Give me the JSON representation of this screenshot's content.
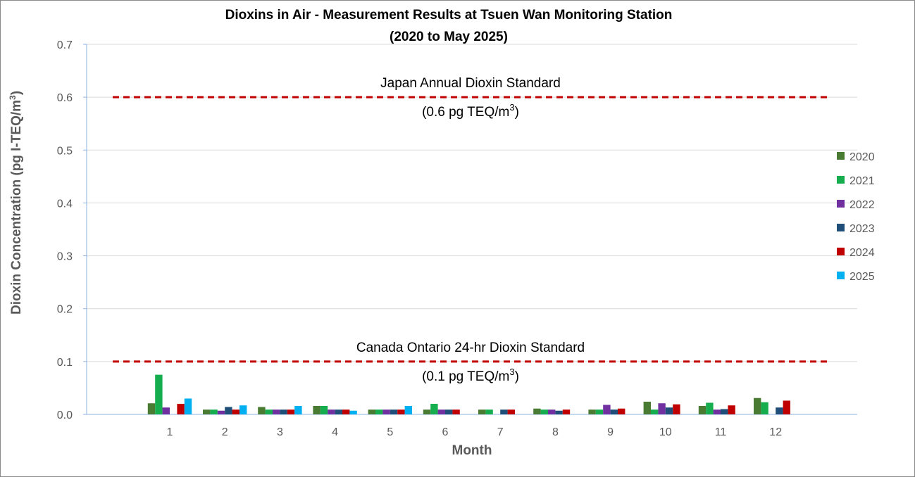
{
  "chart_data": {
    "type": "bar",
    "title_line1": "Dioxins in Air - Measurement Results at Tsuen Wan Monitoring Station",
    "title_line2": "(2020 to May 2025)",
    "xlabel": "Month",
    "ylabel_prefix": "Dioxin Concentration (pg I-TEQ/m",
    "ylabel_sup": "3",
    "ylabel_suffix": ")",
    "ylim": [
      0,
      0.7
    ],
    "yticks": [
      "0.0",
      "0.1",
      "0.2",
      "0.3",
      "0.4",
      "0.5",
      "0.6",
      "0.7"
    ],
    "grid": true,
    "legend_position": "right",
    "categories": [
      "1",
      "2",
      "3",
      "4",
      "5",
      "6",
      "7",
      "8",
      "9",
      "10",
      "11",
      "12"
    ],
    "series": [
      {
        "name": "2020",
        "color": "#4a7b32",
        "values": [
          0.021,
          0.009,
          0.014,
          0.016,
          0.009,
          0.009,
          0.009,
          0.011,
          0.009,
          0.024,
          0.016,
          0.031
        ]
      },
      {
        "name": "2021",
        "color": "#15ad4d",
        "values": [
          0.075,
          0.009,
          0.009,
          0.016,
          0.009,
          0.02,
          0.009,
          0.009,
          0.009,
          0.009,
          0.022,
          0.023
        ]
      },
      {
        "name": "2022",
        "color": "#7030a0",
        "values": [
          0.013,
          0.007,
          0.009,
          0.009,
          0.009,
          0.009,
          null,
          0.009,
          0.018,
          0.021,
          0.009,
          null
        ]
      },
      {
        "name": "2023",
        "color": "#1f4e79",
        "values": [
          null,
          0.014,
          0.009,
          0.009,
          0.009,
          0.009,
          0.009,
          0.007,
          0.009,
          0.013,
          0.01,
          0.013
        ]
      },
      {
        "name": "2024",
        "color": "#c00000",
        "values": [
          0.02,
          0.009,
          0.009,
          0.009,
          0.009,
          0.009,
          0.009,
          0.009,
          0.011,
          0.019,
          0.017,
          0.026
        ]
      },
      {
        "name": "2025",
        "color": "#00b0f0",
        "values": [
          0.03,
          0.017,
          0.016,
          0.007,
          0.016,
          null,
          null,
          null,
          null,
          null,
          null,
          null
        ]
      }
    ],
    "reference_lines": [
      {
        "value": 0.6,
        "label": "Japan Annual Dioxin Standard",
        "sublabel_prefix": "(0.6 pg TEQ/m",
        "sublabel_sup": "3",
        "sublabel_suffix": ")",
        "color": "#c00000"
      },
      {
        "value": 0.1,
        "label": "Canada Ontario 24-hr Dioxin Standard",
        "sublabel_prefix": "(0.1 pg TEQ/m",
        "sublabel_sup": "3",
        "sublabel_suffix": ")",
        "color": "#c00000"
      }
    ]
  }
}
